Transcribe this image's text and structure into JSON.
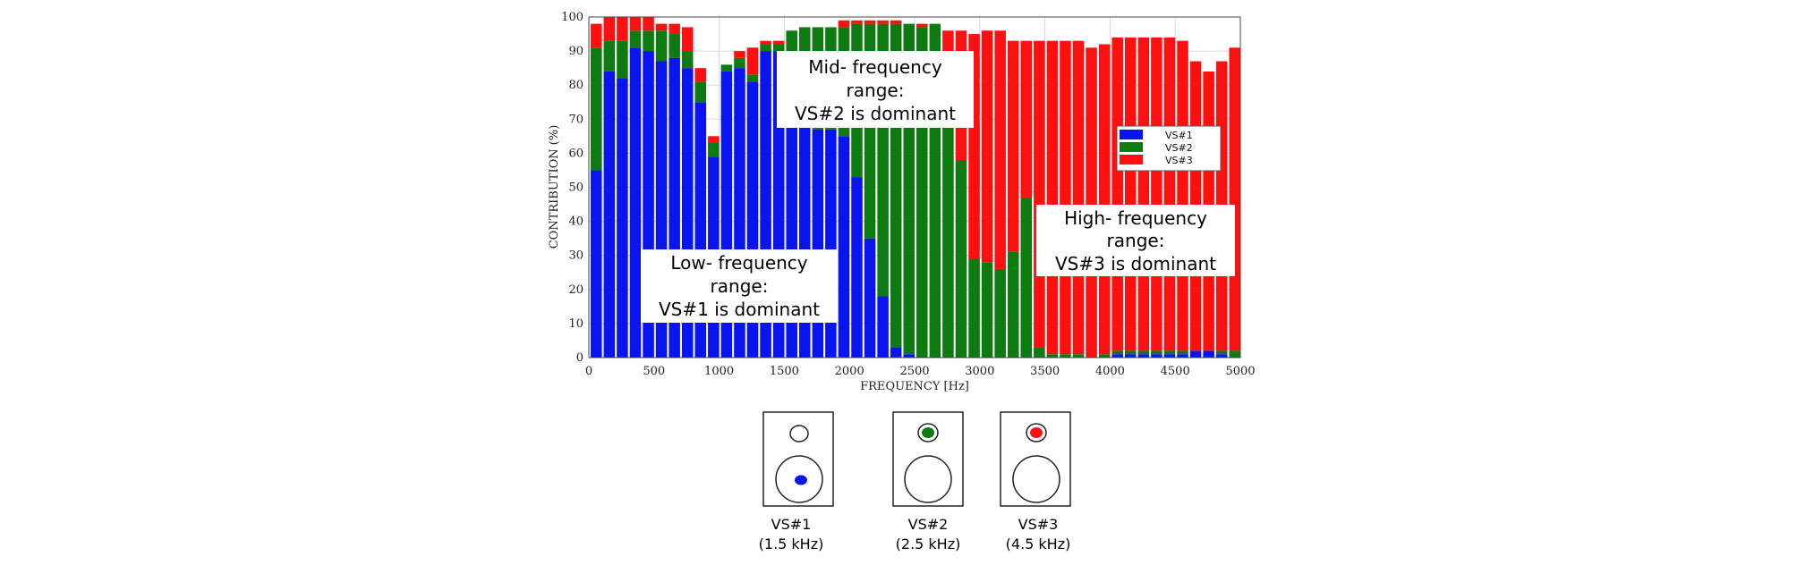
{
  "chart_data": {
    "type": "bar",
    "stacked": true,
    "title": "",
    "xlabel": "FREQUENCY [Hz]",
    "ylabel": "CONTRIBUTION (%)",
    "xlim": [
      0,
      5000
    ],
    "ylim": [
      0,
      100
    ],
    "xticks": [
      "0",
      "500",
      "1000",
      "1500",
      "2000",
      "2500",
      "3000",
      "3500",
      "4000",
      "4500",
      "5000"
    ],
    "yticks": [
      "0",
      "10",
      "20",
      "30",
      "40",
      "50",
      "60",
      "70",
      "80",
      "90",
      "100"
    ],
    "grid": true,
    "legend_position": "middle-right",
    "x": [
      100,
      200,
      300,
      400,
      500,
      600,
      700,
      800,
      900,
      1000,
      1100,
      1200,
      1300,
      1400,
      1500,
      1600,
      1700,
      1800,
      1900,
      2000,
      2100,
      2200,
      2300,
      2400,
      2500,
      2600,
      2700,
      2800,
      2900,
      3000,
      3100,
      3200,
      3300,
      3400,
      3500,
      3600,
      3700,
      3800,
      3900,
      4000,
      4100,
      4200,
      4300,
      4400,
      4500,
      4600,
      4700,
      4800,
      4900,
      5000
    ],
    "series": [
      {
        "name": "VS#1",
        "color": "#0a14ee",
        "values": [
          55,
          84,
          82,
          91,
          90,
          87,
          88,
          85,
          75,
          59,
          84,
          85,
          81,
          90,
          90,
          75,
          70,
          67,
          67,
          65,
          53,
          35,
          18,
          3,
          1,
          0,
          0,
          0,
          0,
          0,
          0,
          0,
          0,
          0,
          0,
          0,
          0,
          0,
          0,
          0,
          1,
          1,
          1,
          1,
          1,
          1,
          2,
          2,
          1,
          0
        ]
      },
      {
        "name": "VS#2",
        "color": "#0e7a12",
        "values": [
          36,
          9,
          11,
          5,
          6,
          9,
          7,
          5,
          6,
          4,
          2,
          3,
          2,
          2,
          2,
          21,
          27,
          30,
          30,
          32,
          45,
          63,
          80,
          95,
          97,
          97,
          98,
          70,
          58,
          29,
          28,
          26,
          31,
          47,
          3,
          1,
          1,
          1,
          0,
          1,
          1,
          1,
          1,
          1,
          1,
          1,
          0,
          0,
          1,
          2
        ]
      },
      {
        "name": "VS#3",
        "color": "#ff1010",
        "values": [
          7,
          7,
          7,
          4,
          4,
          2,
          3,
          7,
          4,
          2,
          0,
          2,
          8,
          1,
          1,
          0,
          0,
          0,
          0,
          2,
          1,
          1,
          1,
          1,
          0,
          1,
          0,
          26,
          38,
          66,
          68,
          70,
          62,
          46,
          90,
          92,
          92,
          92,
          91,
          91,
          92,
          92,
          92,
          92,
          92,
          91,
          85,
          82,
          85,
          89
        ]
      }
    ],
    "annotations": [
      {
        "lines": [
          "Mid- frequency",
          "range:",
          "VS#2 is dominant"
        ]
      },
      {
        "lines": [
          "High- frequency",
          "range:",
          "VS#3 is dominant"
        ]
      },
      {
        "lines": [
          "Low- frequency",
          "range:",
          "VS#1 is dominant"
        ]
      }
    ]
  },
  "speakers": [
    {
      "name": "VS#1",
      "freq": "(1.5 kHz)",
      "active": "woofer",
      "color": "#0a14ee"
    },
    {
      "name": "VS#2",
      "freq": "(2.5 kHz)",
      "active": "tweeter",
      "color": "#0e7a12"
    },
    {
      "name": "VS#3",
      "freq": "(4.5 kHz)",
      "active": "tweeter",
      "color": "#ff1010"
    }
  ]
}
